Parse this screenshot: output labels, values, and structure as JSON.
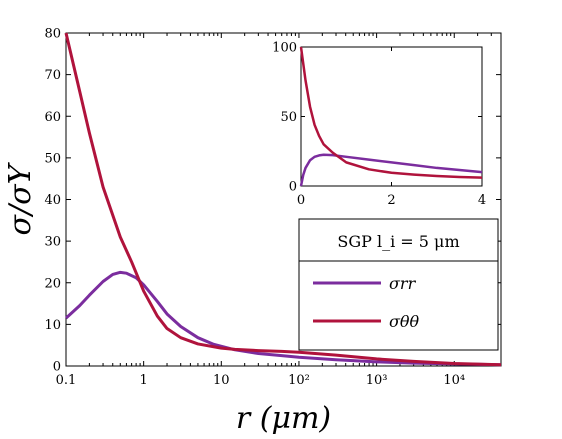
{
  "chart_data": [
    {
      "type": "line",
      "title": "",
      "xlabel": "r (μm)",
      "ylabel": "σ/σY",
      "xscale": "log",
      "xlim": [
        0.1,
        40000
      ],
      "ylim": [
        0,
        80
      ],
      "xticks": [
        {
          "value": 0.1,
          "label": "0.1"
        },
        {
          "value": 1,
          "label": "1"
        },
        {
          "value": 10,
          "label": "10"
        },
        {
          "value": 100,
          "label": "10²"
        },
        {
          "value": 1000,
          "label": "10³"
        },
        {
          "value": 10000,
          "label": "10⁴"
        }
      ],
      "yticks": [
        0,
        10,
        20,
        30,
        40,
        50,
        60,
        70,
        80
      ],
      "grid": false,
      "legend": {
        "placement": "right",
        "title": "SGP l_i = 5 μm",
        "entries": [
          "σrr",
          "σθθ"
        ]
      },
      "series": [
        {
          "name": "σrr",
          "color": "#7b2d9e",
          "points": [
            [
              0.1,
              11.5
            ],
            [
              0.15,
              14.5
            ],
            [
              0.2,
              17
            ],
            [
              0.3,
              20.3
            ],
            [
              0.4,
              22
            ],
            [
              0.5,
              22.5
            ],
            [
              0.6,
              22.3
            ],
            [
              0.8,
              21.2
            ],
            [
              1,
              19.5
            ],
            [
              1.5,
              15.5
            ],
            [
              2,
              12.5
            ],
            [
              3,
              9.5
            ],
            [
              5,
              6.8
            ],
            [
              8,
              5.2
            ],
            [
              15,
              3.9
            ],
            [
              30,
              3.0
            ],
            [
              60,
              2.5
            ],
            [
              100,
              2.1
            ],
            [
              300,
              1.5
            ],
            [
              1000,
              1.0
            ],
            [
              3000,
              0.7
            ],
            [
              10000,
              0.5
            ],
            [
              40000,
              0.3
            ]
          ]
        },
        {
          "name": "σθθ",
          "color": "#b0133c",
          "points": [
            [
              0.1,
              80
            ],
            [
              0.15,
              66
            ],
            [
              0.2,
              56
            ],
            [
              0.3,
              43
            ],
            [
              0.5,
              31
            ],
            [
              0.7,
              25
            ],
            [
              1,
              18
            ],
            [
              1.5,
              12
            ],
            [
              2,
              9
            ],
            [
              3,
              6.8
            ],
            [
              5,
              5.3
            ],
            [
              10,
              4.3
            ],
            [
              15,
              4.0
            ],
            [
              30,
              3.7
            ],
            [
              60,
              3.5
            ],
            [
              100,
              3.3
            ],
            [
              300,
              2.6
            ],
            [
              1000,
              1.7
            ],
            [
              3000,
              1.1
            ],
            [
              10000,
              0.6
            ],
            [
              40000,
              0.3
            ]
          ]
        }
      ]
    },
    {
      "type": "line",
      "title": "",
      "xlabel": "",
      "ylabel": "",
      "xlim": [
        0,
        4
      ],
      "ylim": [
        0,
        100
      ],
      "xticks": [
        0,
        2,
        4
      ],
      "yticks": [
        0,
        50,
        100
      ],
      "grid": false,
      "series": [
        {
          "name": "σrr",
          "color": "#7b2d9e",
          "points": [
            [
              0,
              0
            ],
            [
              0.05,
              8
            ],
            [
              0.1,
              13
            ],
            [
              0.2,
              18.5
            ],
            [
              0.3,
              21
            ],
            [
              0.4,
              22
            ],
            [
              0.5,
              22.5
            ],
            [
              0.7,
              22.2
            ],
            [
              1,
              21
            ],
            [
              1.5,
              19
            ],
            [
              2,
              17
            ],
            [
              2.5,
              15
            ],
            [
              3,
              13
            ],
            [
              3.5,
              11.5
            ],
            [
              4,
              10
            ]
          ]
        },
        {
          "name": "σθθ",
          "color": "#b0133c",
          "points": [
            [
              0,
              100
            ],
            [
              0.05,
              88
            ],
            [
              0.1,
              76
            ],
            [
              0.2,
              57
            ],
            [
              0.3,
              44
            ],
            [
              0.4,
              36
            ],
            [
              0.5,
              30
            ],
            [
              0.7,
              24
            ],
            [
              1,
              17
            ],
            [
              1.5,
              12
            ],
            [
              2,
              9.5
            ],
            [
              2.5,
              8.2
            ],
            [
              3,
              7.2
            ],
            [
              3.5,
              6.5
            ],
            [
              4,
              6
            ]
          ]
        }
      ]
    }
  ]
}
